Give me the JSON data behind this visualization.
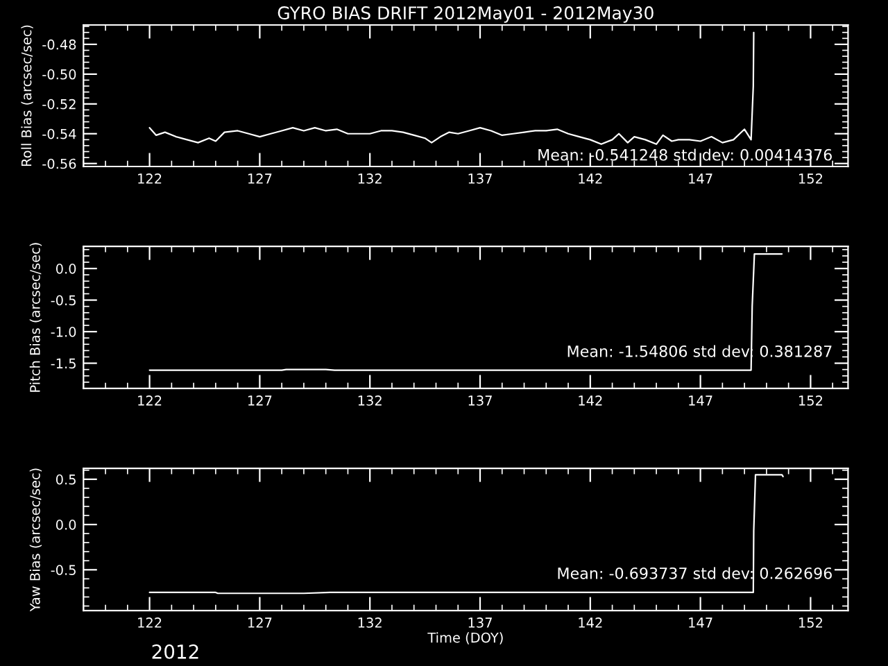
{
  "chart_data": [
    {
      "type": "line",
      "title": "GYRO BIAS DRIFT 2012May01 - 2012May30",
      "ylabel": "Roll Bias (arcsec/sec)",
      "xlim": [
        119,
        153.7
      ],
      "xticks": [
        122,
        127,
        132,
        137,
        142,
        147,
        152
      ],
      "ylim": [
        -0.562,
        -0.467
      ],
      "yticks": [
        {
          "value": -0.56,
          "label": "-0.56"
        },
        {
          "value": -0.54,
          "label": "-0.54"
        },
        {
          "value": -0.52,
          "label": "-0.52"
        },
        {
          "value": -0.5,
          "label": "-0.50"
        },
        {
          "value": -0.48,
          "label": "-0.48"
        }
      ],
      "annotations": [
        "Mean: -0.541248 std dev: 0.00414376"
      ],
      "grid": false,
      "legend": false,
      "series": [
        {
          "color": "#ffffff",
          "x": [
            122.0,
            122.3,
            122.7,
            123.2,
            123.7,
            124.2,
            124.7,
            125.0,
            125.4,
            126.0,
            126.5,
            127.0,
            127.5,
            128.0,
            128.5,
            129.0,
            129.5,
            130.0,
            130.5,
            131.0,
            131.5,
            132.0,
            132.5,
            133.0,
            133.5,
            134.0,
            134.5,
            134.8,
            135.2,
            135.6,
            136.0,
            136.5,
            137.0,
            137.5,
            138.0,
            138.5,
            139.0,
            139.5,
            140.0,
            140.5,
            141.0,
            141.5,
            142.0,
            142.5,
            143.0,
            143.3,
            143.7,
            144.0,
            144.5,
            145.0,
            145.3,
            145.7,
            146.0,
            146.5,
            147.0,
            147.5,
            148.0,
            148.5,
            149.0,
            149.3,
            149.4,
            149.42
          ],
          "values": [
            -0.536,
            -0.541,
            -0.539,
            -0.542,
            -0.544,
            -0.546,
            -0.543,
            -0.545,
            -0.539,
            -0.538,
            -0.54,
            -0.542,
            -0.54,
            -0.538,
            -0.536,
            -0.538,
            -0.536,
            -0.538,
            -0.537,
            -0.54,
            -0.54,
            -0.54,
            -0.538,
            -0.538,
            -0.539,
            -0.541,
            -0.543,
            -0.546,
            -0.542,
            -0.539,
            -0.54,
            -0.538,
            -0.536,
            -0.538,
            -0.541,
            -0.54,
            -0.539,
            -0.538,
            -0.538,
            -0.537,
            -0.54,
            -0.542,
            -0.544,
            -0.547,
            -0.544,
            -0.54,
            -0.546,
            -0.542,
            -0.544,
            -0.547,
            -0.541,
            -0.545,
            -0.544,
            -0.544,
            -0.545,
            -0.542,
            -0.546,
            -0.544,
            -0.537,
            -0.544,
            -0.508,
            -0.472
          ]
        }
      ]
    },
    {
      "type": "line",
      "ylabel": "Pitch Bias (arcsec/sec)",
      "xlim": [
        119,
        153.7
      ],
      "xticks": [
        122,
        127,
        132,
        137,
        142,
        147,
        152
      ],
      "ylim": [
        -1.9,
        0.35
      ],
      "yticks": [
        {
          "value": -1.5,
          "label": "-1.5"
        },
        {
          "value": -1.0,
          "label": "-1.0"
        },
        {
          "value": -0.5,
          "label": "-0.5"
        },
        {
          "value": 0.0,
          "label": "0.0"
        }
      ],
      "annotations": [
        "Mean: -1.54806 std dev: 0.381287"
      ],
      "grid": false,
      "legend": false,
      "series": [
        {
          "color": "#ffffff",
          "x": [
            122.0,
            128.0,
            128.2,
            130.0,
            130.4,
            149.3,
            149.35,
            149.45,
            150.7
          ],
          "values": [
            -1.61,
            -1.61,
            -1.6,
            -1.6,
            -1.61,
            -1.61,
            -0.6,
            0.23,
            0.23
          ]
        }
      ]
    },
    {
      "type": "line",
      "ylabel": "Yaw Bias (arcsec/sec)",
      "xlabel": "Time (DOY)",
      "xlim": [
        119,
        153.7
      ],
      "xticks": [
        122,
        127,
        132,
        137,
        142,
        147,
        152
      ],
      "ylim": [
        -0.95,
        0.62
      ],
      "yticks": [
        {
          "value": -0.5,
          "label": "-0.5"
        },
        {
          "value": 0.0,
          "label": "0.0"
        },
        {
          "value": 0.5,
          "label": "0.5"
        }
      ],
      "annotations": [
        "Mean: -0.693737 std dev: 0.262696",
        "2012"
      ],
      "grid": false,
      "legend": false,
      "series": [
        {
          "color": "#ffffff",
          "x": [
            122.0,
            125.0,
            125.1,
            129.0,
            130.2,
            149.4,
            149.42,
            149.5,
            150.7,
            150.75
          ],
          "values": [
            -0.75,
            -0.75,
            -0.76,
            -0.76,
            -0.75,
            -0.75,
            -0.07,
            0.55,
            0.55,
            0.53
          ]
        }
      ]
    }
  ]
}
